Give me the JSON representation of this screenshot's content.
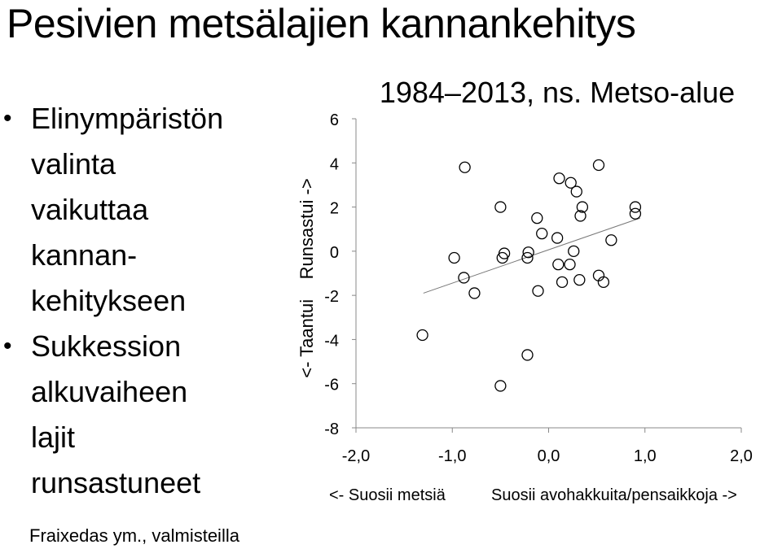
{
  "slide": {
    "title": "Pesivien metsälajien kannankehitys",
    "bullets": [
      {
        "lines": [
          "Elinympäristön",
          "valinta",
          "vaikuttaa",
          "kannan-",
          "kehitykseen"
        ]
      },
      {
        "lines": [
          "Sukkession",
          "alkuvaiheen",
          "lajit",
          "runsastuneet"
        ]
      }
    ],
    "credit": "Fraixedas ym., valmisteilla"
  },
  "chart_data": {
    "type": "scatter",
    "title": "1984–2013, ns. Metso-alue",
    "ylabel": "<- Taantui    Runsastui ->",
    "xlabel_left": "<- Suosii metsiä",
    "xlabel_right": "Suosii avohakkuita/pensaikkoja ->",
    "xlim": [
      -2.0,
      2.0
    ],
    "ylim": [
      -8,
      6
    ],
    "xticks": [
      -2.0,
      -1.0,
      0.0,
      1.0,
      2.0
    ],
    "xtick_labels": [
      "-2,0",
      "-1,0",
      "0,0",
      "1,0",
      "2,0"
    ],
    "yticks": [
      6,
      4,
      2,
      0,
      -2,
      -4,
      -6,
      -8
    ],
    "ytick_labels": [
      "6",
      "4",
      "2",
      "0",
      "-2",
      "-4",
      "-6",
      "-8"
    ],
    "trendline": {
      "x": [
        -1.3,
        0.95
      ],
      "y": [
        -1.9,
        1.5
      ]
    },
    "points": [
      {
        "x": -1.31,
        "y": -3.8
      },
      {
        "x": -0.98,
        "y": -0.3
      },
      {
        "x": -0.87,
        "y": 3.8
      },
      {
        "x": -0.88,
        "y": -1.2
      },
      {
        "x": -0.77,
        "y": -1.9
      },
      {
        "x": -0.5,
        "y": 2.0
      },
      {
        "x": -0.5,
        "y": -6.1
      },
      {
        "x": -0.48,
        "y": -0.3
      },
      {
        "x": -0.46,
        "y": -0.1
      },
      {
        "x": -0.22,
        "y": -0.3
      },
      {
        "x": -0.21,
        "y": -0.05
      },
      {
        "x": -0.22,
        "y": -4.7
      },
      {
        "x": -0.12,
        "y": 1.5
      },
      {
        "x": -0.11,
        "y": -1.8
      },
      {
        "x": -0.07,
        "y": 0.8
      },
      {
        "x": 0.09,
        "y": 0.6
      },
      {
        "x": 0.1,
        "y": -0.6
      },
      {
        "x": 0.11,
        "y": 3.3
      },
      {
        "x": 0.14,
        "y": -1.4
      },
      {
        "x": 0.22,
        "y": -0.6
      },
      {
        "x": 0.23,
        "y": 3.1
      },
      {
        "x": 0.26,
        "y": 0.0
      },
      {
        "x": 0.29,
        "y": 2.7
      },
      {
        "x": 0.33,
        "y": 1.6
      },
      {
        "x": 0.35,
        "y": 2.0
      },
      {
        "x": 0.32,
        "y": -1.3
      },
      {
        "x": 0.52,
        "y": 3.9
      },
      {
        "x": 0.52,
        "y": -1.1
      },
      {
        "x": 0.57,
        "y": -1.4
      },
      {
        "x": 0.65,
        "y": 0.5
      },
      {
        "x": 0.9,
        "y": 2.0
      },
      {
        "x": 0.9,
        "y": 1.7
      }
    ]
  }
}
